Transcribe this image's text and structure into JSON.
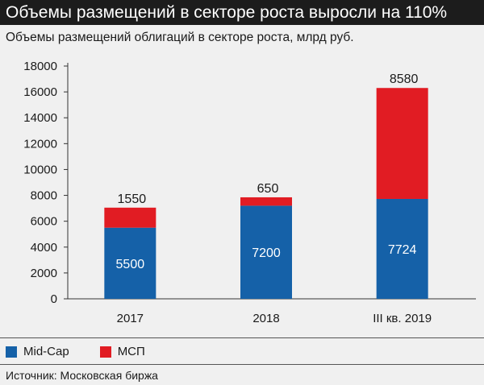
{
  "header": {
    "title": "Объемы размещений в секторе роста выросли на 110%"
  },
  "colors": {
    "mid_cap": "#1561a8",
    "msp": "#e11c23",
    "header_bg": "#1c1c1c",
    "background": "#f0f0f0"
  },
  "chart_data": {
    "type": "bar",
    "stacked": true,
    "title": "Объемы размещений облигаций в секторе роста, млрд руб.",
    "xlabel": "",
    "ylabel": "",
    "categories": [
      "2017",
      "2018",
      "III кв. 2019"
    ],
    "series": [
      {
        "name": "Mid-Cap",
        "values": [
          5500,
          7200,
          7724
        ],
        "color": "#1561a8"
      },
      {
        "name": "МСП",
        "values": [
          1550,
          650,
          8580
        ],
        "color": "#e11c23"
      }
    ],
    "ylim": [
      0,
      18000
    ],
    "yticks": [
      0,
      2000,
      4000,
      6000,
      8000,
      10000,
      12000,
      14000,
      16000,
      18000
    ],
    "grid": false,
    "legend_position": "bottom-left"
  },
  "legend": {
    "items": [
      {
        "label": "Mid-Cap",
        "color": "#1561a8"
      },
      {
        "label": "МСП",
        "color": "#e11c23"
      }
    ]
  },
  "footer": {
    "source": "Источник: Московская биржа"
  }
}
